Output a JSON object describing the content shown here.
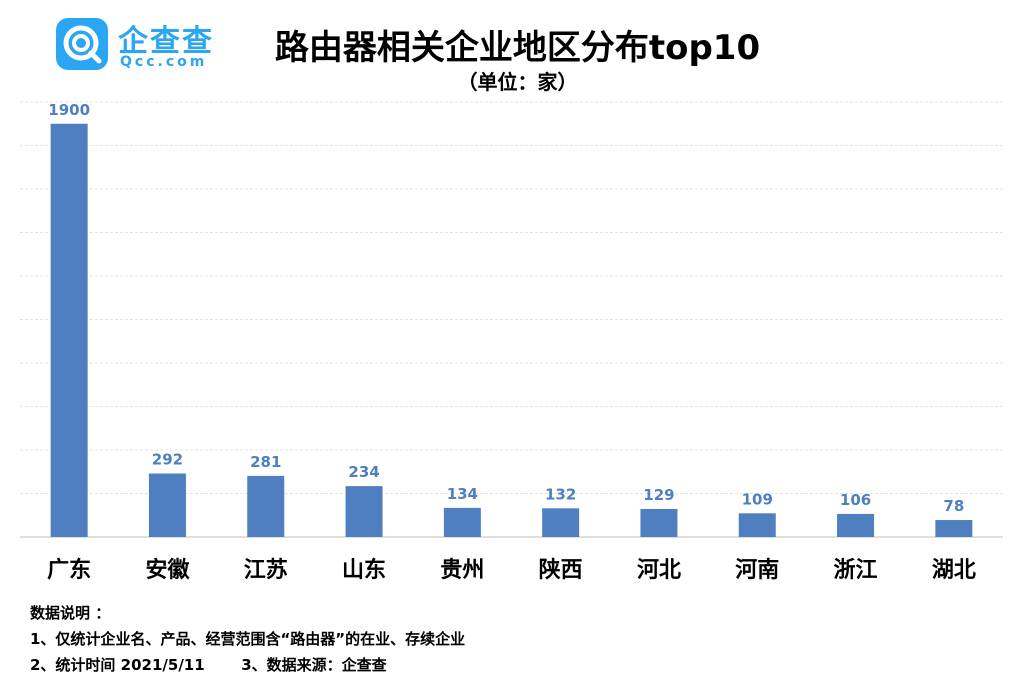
{
  "logo": {
    "name": "企查查",
    "domain": "Qcc.com"
  },
  "chart_data": {
    "type": "bar",
    "title": "路由器相关企业地区分布top10",
    "subtitle": "（单位：家）",
    "categories": [
      "广东",
      "安徽",
      "江苏",
      "山东",
      "贵州",
      "陕西",
      "河北",
      "河南",
      "浙江",
      "湖北"
    ],
    "values": [
      1900,
      292,
      281,
      234,
      134,
      132,
      129,
      109,
      106,
      78
    ],
    "ylim": [
      0,
      2000
    ],
    "grid": true,
    "bar_color": "#4f7fc0",
    "label_color": "#4f7fc0"
  },
  "notes": {
    "heading": "数据说明 ：",
    "line1": "1、仅统计企业名、产品、经营范围含“路由器”的在业、存续企业",
    "line2": "2、统计时间 2021/5/11       3、数据来源：企查查"
  }
}
